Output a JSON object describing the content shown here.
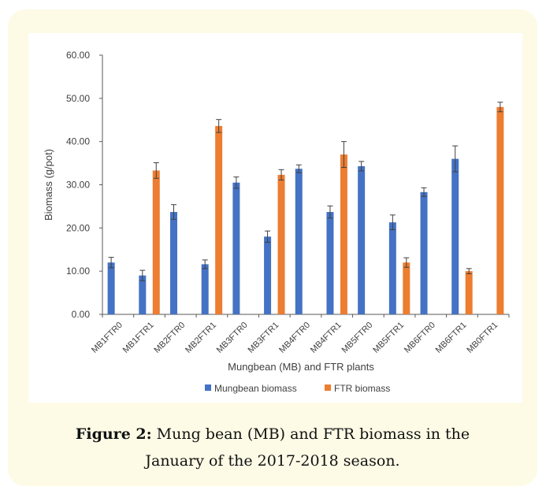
{
  "colors": {
    "card_bg": "#fdfbe6",
    "mungbean": "#4472c4",
    "ftr": "#ed7d31",
    "axis": "#595959",
    "error_bar": "#404040"
  },
  "chart_data": {
    "type": "bar",
    "title": "",
    "xlabel": "Mungbean (MB) and FTR plants",
    "ylabel": "Biomass (g/pot)",
    "ylim": [
      0,
      60
    ],
    "ytick_labels": [
      "0.00",
      "10.00",
      "20.00",
      "30.00",
      "40.00",
      "50.00",
      "60.00"
    ],
    "grid": false,
    "legend_position": "bottom",
    "categories": [
      "MB1FTR0",
      "MB1FTR1",
      "MB2FTR0",
      "MB2FTR1",
      "MB3FTR0",
      "MB3FTR1",
      "MB4FTR0",
      "MB4FTR1",
      "MB5FTR0",
      "MB5FTR1",
      "MB6FTR0",
      "MB6FTR1",
      "MB0FTR1"
    ],
    "series": [
      {
        "name": "Mungbean biomass",
        "color": "#4472c4",
        "values": [
          12.0,
          9.0,
          23.7,
          11.6,
          30.5,
          18.0,
          33.7,
          23.7,
          34.3,
          21.3,
          28.3,
          36.0,
          null
        ],
        "errors": [
          1.2,
          1.2,
          1.7,
          1.0,
          1.3,
          1.3,
          0.9,
          1.4,
          1.1,
          1.7,
          1.0,
          3.0,
          null
        ]
      },
      {
        "name": "FTR biomass",
        "color": "#ed7d31",
        "values": [
          null,
          33.3,
          null,
          43.6,
          null,
          32.3,
          null,
          37.0,
          null,
          12.0,
          null,
          10.0,
          48.0
        ],
        "errors": [
          null,
          1.8,
          null,
          1.5,
          null,
          1.2,
          null,
          3.0,
          null,
          1.1,
          null,
          0.6,
          1.1
        ]
      }
    ]
  },
  "caption": {
    "label": "Figure 2:",
    "text_line1": " Mung bean (MB) and FTR biomass in the",
    "text_line2": "January of the 2017-2018 season."
  }
}
